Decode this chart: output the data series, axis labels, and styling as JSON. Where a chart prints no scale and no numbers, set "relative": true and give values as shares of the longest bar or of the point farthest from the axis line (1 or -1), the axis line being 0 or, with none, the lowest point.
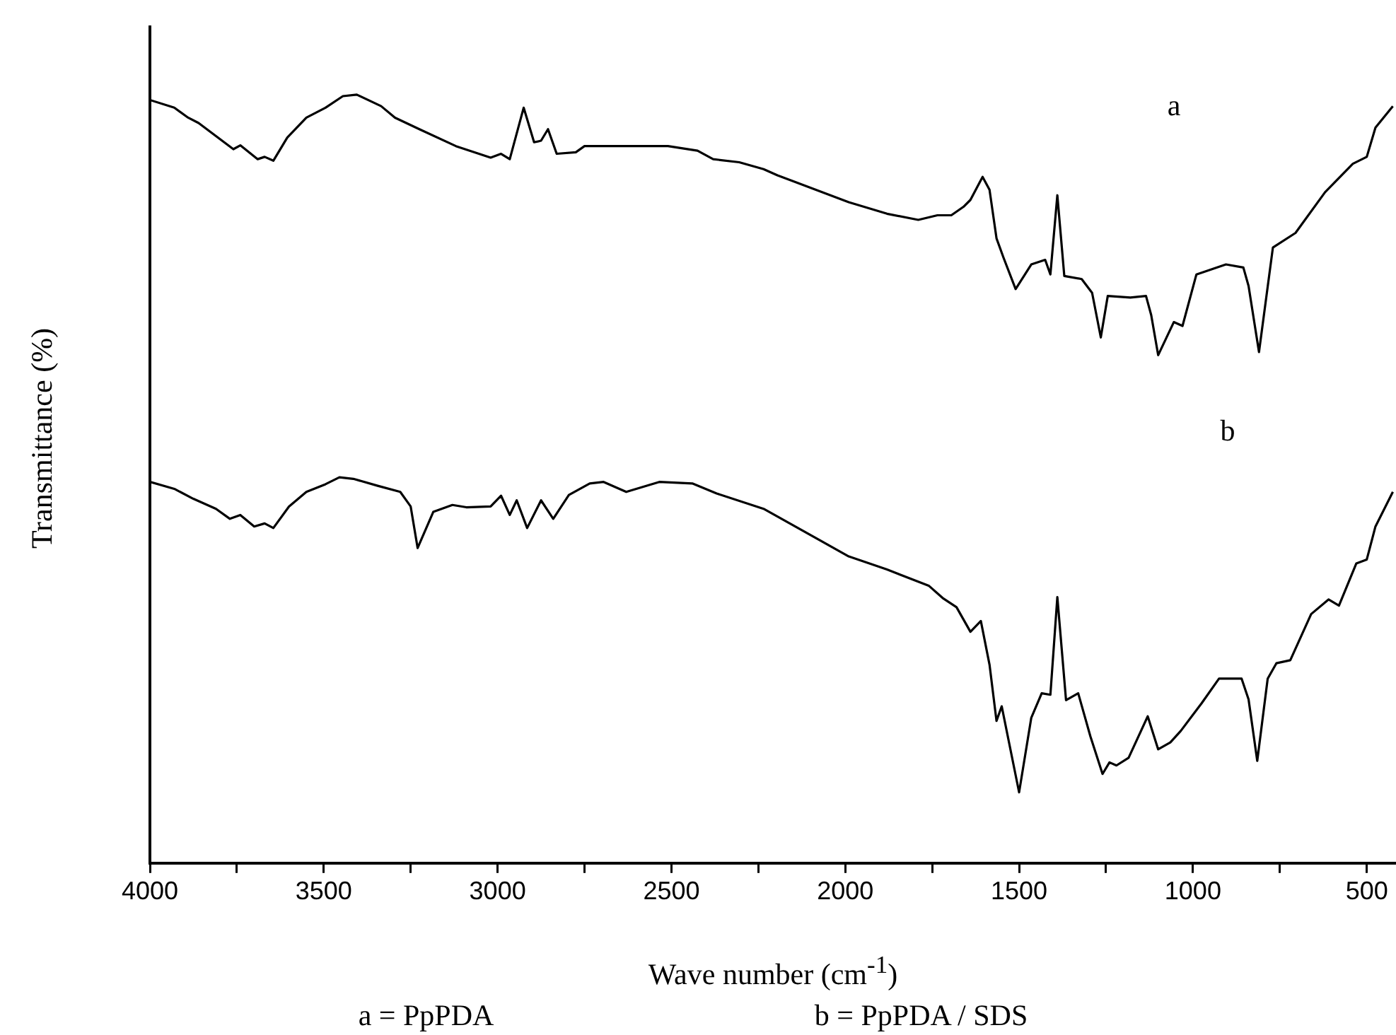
{
  "chart_data": {
    "type": "line",
    "relative": true,
    "xlabel": "Wave number (cm$^{-1}$)",
    "ylabel": "Transmittance (%)",
    "xlim": [
      4000,
      420
    ],
    "xticks": [
      4000,
      {
        "value": 3750,
        "label": null
      },
      3500,
      {
        "value": 3250,
        "label": null
      },
      3000,
      {
        "value": 2750,
        "label": null
      },
      2500,
      {
        "value": 2250,
        "label": null
      },
      2000,
      {
        "value": 1750,
        "label": null
      },
      1500,
      {
        "value": 1250,
        "label": null
      },
      1000,
      {
        "value": 750,
        "label": null
      },
      500
    ],
    "marker": "none",
    "line_style": "solid",
    "series": [
      {
        "color": "#000000",
        "x": [
          4000,
          3930,
          3890,
          3860,
          3810,
          3760,
          3740,
          3690,
          3670,
          3645,
          3605,
          3550,
          3495,
          3445,
          3405,
          3335,
          3295,
          3225,
          3120,
          3020,
          2990,
          2965,
          2925,
          2895,
          2875,
          2855,
          2830,
          2775,
          2750,
          2600,
          2510,
          2425,
          2380,
          2305,
          2235,
          2195,
          1990,
          1880,
          1790,
          1735,
          1695,
          1660,
          1640,
          1605,
          1585,
          1565,
          1545,
          1510,
          1465,
          1425,
          1410,
          1390,
          1370,
          1320,
          1290,
          1265,
          1245,
          1180,
          1135,
          1120,
          1100,
          1055,
          1030,
          990,
          905,
          855,
          840,
          810,
          770,
          705,
          620,
          540,
          500,
          475,
          425
        ],
        "values": [
          0.993,
          0.983,
          0.97,
          0.963,
          0.946,
          0.929,
          0.934,
          0.916,
          0.919,
          0.914,
          0.944,
          0.97,
          0.983,
          0.998,
          1,
          0.985,
          0.97,
          0.955,
          0.933,
          0.918,
          0.923,
          0.916,
          0.983,
          0.938,
          0.94,
          0.955,
          0.923,
          0.925,
          0.933,
          0.933,
          0.933,
          0.927,
          0.916,
          0.912,
          0.903,
          0.895,
          0.86,
          0.845,
          0.837,
          0.843,
          0.843,
          0.854,
          0.863,
          0.893,
          0.876,
          0.813,
          0.788,
          0.747,
          0.779,
          0.785,
          0.766,
          0.869,
          0.764,
          0.76,
          0.742,
          0.684,
          0.738,
          0.736,
          0.738,
          0.713,
          0.661,
          0.704,
          0.699,
          0.766,
          0.779,
          0.775,
          0.751,
          0.665,
          0.801,
          0.82,
          0.873,
          0.91,
          0.919,
          0.957,
          0.985
        ]
      },
      {
        "color": "#000000",
        "x": [
          4000,
          3930,
          3875,
          3810,
          3770,
          3740,
          3700,
          3670,
          3645,
          3600,
          3550,
          3495,
          3455,
          3415,
          3345,
          3280,
          3250,
          3230,
          3185,
          3130,
          3090,
          3020,
          2990,
          2965,
          2945,
          2915,
          2875,
          2840,
          2795,
          2735,
          2695,
          2630,
          2535,
          2440,
          2370,
          2235,
          2195,
          1990,
          1880,
          1760,
          1720,
          1680,
          1640,
          1610,
          1585,
          1565,
          1550,
          1500,
          1465,
          1435,
          1410,
          1390,
          1365,
          1330,
          1295,
          1260,
          1240,
          1220,
          1185,
          1130,
          1100,
          1065,
          1035,
          975,
          925,
          860,
          840,
          815,
          785,
          760,
          720,
          660,
          610,
          580,
          530,
          500,
          475,
          425
        ],
        "values": [
          0.496,
          0.487,
          0.474,
          0.461,
          0.448,
          0.453,
          0.438,
          0.442,
          0.436,
          0.464,
          0.483,
          0.493,
          0.502,
          0.5,
          0.491,
          0.483,
          0.464,
          0.41,
          0.457,
          0.466,
          0.463,
          0.464,
          0.478,
          0.453,
          0.472,
          0.436,
          0.472,
          0.448,
          0.479,
          0.494,
          0.496,
          0.483,
          0.496,
          0.494,
          0.481,
          0.461,
          0.451,
          0.399,
          0.382,
          0.361,
          0.345,
          0.333,
          0.301,
          0.315,
          0.258,
          0.185,
          0.204,
          0.092,
          0.189,
          0.221,
          0.219,
          0.346,
          0.212,
          0.221,
          0.165,
          0.116,
          0.131,
          0.127,
          0.137,
          0.191,
          0.148,
          0.157,
          0.172,
          0.208,
          0.24,
          0.24,
          0.213,
          0.133,
          0.24,
          0.26,
          0.264,
          0.324,
          0.343,
          0.335,
          0.39,
          0.395,
          0.438,
          0.483
        ]
      }
    ],
    "annotations": [
      "a",
      "b",
      "a = PpPDA",
      "b = PpPDA / SDS"
    ]
  }
}
